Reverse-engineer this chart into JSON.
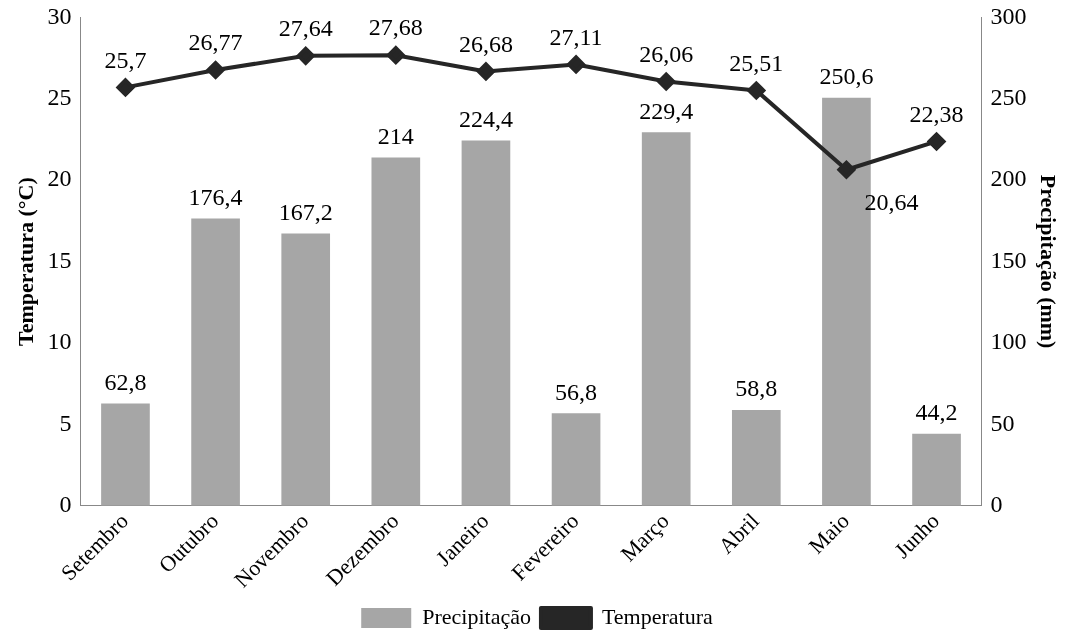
{
  "chart_data": {
    "type": "bar",
    "categories": [
      "Setembro",
      "Outubro",
      "Novembro",
      "Dezembro",
      "Janeiro",
      "Fevereiro",
      "Março",
      "Abril",
      "Maio",
      "Junho"
    ],
    "series": [
      {
        "name": "Precipitação",
        "axis": "y2",
        "color": "#a6a6a6",
        "values": [
          62.8,
          176.4,
          167.2,
          214,
          224.4,
          56.8,
          229.4,
          58.8,
          250.6,
          44.2
        ],
        "value_labels": [
          "62,8",
          "176,4",
          "167,2",
          "214",
          "224,4",
          "56,8",
          "229,4",
          "58,8",
          "250,6",
          "44,2"
        ]
      },
      {
        "name": "Temperatura",
        "type": "line",
        "axis": "y",
        "color": "#262626",
        "marker": "diamond",
        "values": [
          25.7,
          26.77,
          27.64,
          27.68,
          26.68,
          27.11,
          26.06,
          25.51,
          20.64,
          22.38
        ],
        "value_labels": [
          "25,7",
          "26,77",
          "27,64",
          "27,68",
          "26,68",
          "27,11",
          "26,06",
          "25,51",
          "20,64",
          "22,38"
        ]
      }
    ],
    "ylabel": "Temperatura (°C)",
    "y2label": "Precipitação (mm)",
    "ylim": [
      0,
      30
    ],
    "yticks": [
      0,
      5,
      10,
      15,
      20,
      25,
      30
    ],
    "y2lim": [
      0,
      300
    ],
    "y2ticks": [
      0,
      50,
      100,
      150,
      200,
      250,
      300
    ],
    "data_labels": true,
    "legend": "bottom",
    "grid": false
  }
}
